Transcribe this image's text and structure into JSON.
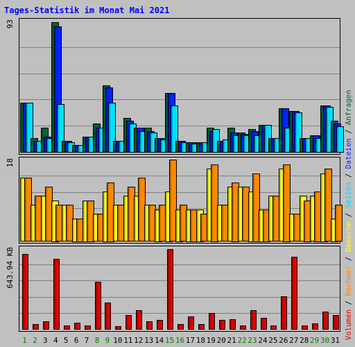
{
  "title": "Tages-Statistik im Monat Mai 2021",
  "colors": {
    "background": "#c0c0c0",
    "title": "#0000ff",
    "grid": "#808080",
    "anfragen": "#006633",
    "dateien": "#0022ff",
    "seiten": "#00e0ff",
    "besuche": "#ffff22",
    "rechner": "#ff8800",
    "volumen": "#dd0000",
    "weekend_label": "#008000",
    "weekday_label": "#000000"
  },
  "right_label": {
    "volumen": "Volumen",
    "rechner": "Rechner",
    "besuche": "Besuche",
    "seiten": "Seiten",
    "dateien": "Dateien",
    "anfragen": "Anfragen",
    "separator": " / "
  },
  "chart_data": [
    {
      "type": "bar",
      "ymax_label": "93",
      "ylim": [
        0,
        93
      ],
      "categories": [
        "1",
        "2",
        "3",
        "4",
        "5",
        "6",
        "7",
        "8",
        "9",
        "10",
        "11",
        "12",
        "13",
        "14",
        "15",
        "16",
        "17",
        "18",
        "19",
        "20",
        "21",
        "22",
        "23",
        "24",
        "25",
        "26",
        "27",
        "28",
        "29",
        "30",
        "31"
      ],
      "weekend_days": [
        "1",
        "2",
        "8",
        "9",
        "15",
        "16",
        "22",
        "23",
        "29",
        "30"
      ],
      "series": [
        {
          "name": "Anfragen",
          "key": "anfragen",
          "values": [
            35,
            10,
            17,
            92,
            8,
            5,
            11,
            20,
            47,
            8,
            24,
            17,
            17,
            10,
            42,
            8,
            7,
            7,
            17,
            8,
            17,
            14,
            16,
            19,
            10,
            31,
            29,
            10,
            12,
            33,
            22
          ]
        },
        {
          "name": "Dateien",
          "key": "dateien",
          "values": [
            35,
            8,
            11,
            89,
            8,
            5,
            11,
            17,
            46,
            8,
            22,
            17,
            15,
            10,
            42,
            8,
            7,
            7,
            15,
            8,
            14,
            13,
            15,
            19,
            10,
            31,
            29,
            10,
            12,
            33,
            20
          ]
        },
        {
          "name": "Seiten",
          "key": "seiten",
          "values": [
            35,
            8,
            10,
            34,
            7,
            5,
            11,
            17,
            35,
            8,
            20,
            15,
            14,
            9,
            33,
            7,
            6,
            7,
            16,
            9,
            12,
            12,
            12,
            19,
            10,
            17,
            28,
            10,
            10,
            32,
            18
          ]
        }
      ]
    },
    {
      "type": "bar",
      "ymax_label": "18",
      "ylim": [
        0,
        18
      ],
      "categories": [
        "1",
        "2",
        "3",
        "4",
        "5",
        "6",
        "7",
        "8",
        "9",
        "10",
        "11",
        "12",
        "13",
        "14",
        "15",
        "16",
        "17",
        "18",
        "19",
        "20",
        "21",
        "22",
        "23",
        "24",
        "25",
        "26",
        "27",
        "28",
        "29",
        "30",
        "31"
      ],
      "series": [
        {
          "name": "Besuche",
          "key": "besuche",
          "values": [
            14,
            8,
            10,
            9,
            8,
            5,
            9,
            6,
            11,
            8,
            10,
            10,
            8,
            7,
            11,
            7,
            7,
            7,
            16,
            8,
            12,
            12,
            11,
            7,
            10,
            16,
            6,
            10,
            10,
            15,
            5
          ]
        },
        {
          "name": "Rechner",
          "key": "rechner",
          "values": [
            14,
            10,
            12,
            8,
            8,
            5,
            9,
            6,
            13,
            8,
            12,
            14,
            8,
            8,
            18,
            8,
            7,
            6,
            17,
            8,
            13,
            12,
            15,
            7,
            10,
            17,
            6,
            9,
            11,
            16,
            8
          ]
        }
      ]
    },
    {
      "type": "bar",
      "ymax_label": "643.94 KB",
      "ylim": [
        0,
        643.94
      ],
      "categories": [
        "1",
        "2",
        "3",
        "4",
        "5",
        "6",
        "7",
        "8",
        "9",
        "10",
        "11",
        "12",
        "13",
        "14",
        "15",
        "16",
        "17",
        "18",
        "19",
        "20",
        "21",
        "22",
        "23",
        "24",
        "25",
        "26",
        "27",
        "28",
        "29",
        "30",
        "31"
      ],
      "series": [
        {
          "name": "Volumen",
          "key": "volumen",
          "values": [
            600,
            40,
            60,
            560,
            30,
            50,
            30,
            380,
            210,
            20,
            110,
            150,
            60,
            70,
            640,
            40,
            100,
            40,
            130,
            70,
            80,
            30,
            150,
            90,
            25,
            260,
            580,
            30,
            45,
            140,
            110
          ]
        }
      ]
    }
  ]
}
